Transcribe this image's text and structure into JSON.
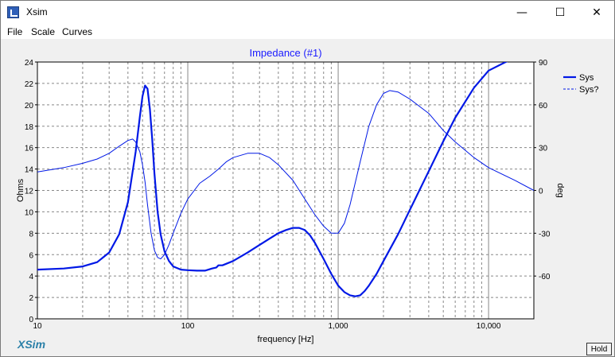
{
  "window": {
    "title": "Xsim",
    "minimize_glyph": "—",
    "maximize_glyph": "☐",
    "close_glyph": "✕"
  },
  "menu": {
    "items": [
      "File",
      "Scale",
      "Curves"
    ]
  },
  "footer": {
    "logo": "XSim",
    "hold_label": "Hold"
  },
  "chart_data": {
    "type": "line",
    "title": "Impedance (#1)",
    "xlabel": "frequency [Hz]",
    "ylabel": "Ohms",
    "y2label": "deg",
    "xscale": "log",
    "xlim": [
      10,
      20000
    ],
    "ylim": [
      0,
      24
    ],
    "y2lim": [
      -90,
      90
    ],
    "x_tick_labels": [
      "10",
      "100",
      "1,000",
      "10,000"
    ],
    "y_ticks": [
      0,
      2,
      4,
      6,
      8,
      10,
      12,
      14,
      16,
      18,
      20,
      22,
      24
    ],
    "y2_ticks": [
      -60,
      -30,
      0,
      30,
      60,
      90
    ],
    "grid": true,
    "legend_position": "right",
    "colors": {
      "series": "#0018e6",
      "title": "#1a1aff",
      "grid": "#888888"
    },
    "series": [
      {
        "name": "Sys",
        "axis": "left",
        "style": "solid-thick",
        "x": [
          10,
          15,
          20,
          25,
          30,
          35,
          40,
          45,
          48,
          50,
          52,
          54,
          56,
          58,
          60,
          63,
          66,
          70,
          75,
          80,
          90,
          100,
          115,
          130,
          145,
          155,
          160,
          170,
          200,
          250,
          300,
          350,
          400,
          450,
          500,
          550,
          600,
          650,
          700,
          800,
          900,
          1000,
          1100,
          1200,
          1300,
          1400,
          1500,
          1600,
          1800,
          2000,
          2500,
          3000,
          4000,
          5000,
          6000,
          8000,
          10000,
          13000,
          16000,
          20000
        ],
        "y": [
          4.6,
          4.7,
          4.9,
          5.3,
          6.2,
          7.9,
          10.9,
          15.6,
          18.9,
          20.8,
          21.8,
          21.5,
          19.6,
          16.8,
          13.6,
          10.0,
          7.9,
          6.3,
          5.4,
          4.9,
          4.6,
          4.55,
          4.5,
          4.5,
          4.7,
          4.8,
          5.0,
          5.0,
          5.4,
          6.2,
          6.9,
          7.5,
          8.0,
          8.3,
          8.5,
          8.5,
          8.3,
          7.8,
          7.1,
          5.6,
          4.2,
          3.1,
          2.5,
          2.2,
          2.1,
          2.2,
          2.6,
          3.1,
          4.2,
          5.4,
          7.9,
          10.2,
          13.8,
          16.6,
          18.8,
          21.6,
          23.2,
          24.0,
          24.5,
          25.0
        ]
      },
      {
        "name": "Sys?",
        "axis": "right",
        "style": "dashed-thin",
        "x": [
          10,
          15,
          20,
          25,
          30,
          35,
          40,
          43,
          45,
          48,
          50,
          52,
          54,
          57,
          60,
          63,
          66,
          70,
          75,
          80,
          90,
          100,
          120,
          140,
          160,
          180,
          200,
          250,
          300,
          350,
          400,
          500,
          600,
          700,
          800,
          900,
          1000,
          1100,
          1200,
          1400,
          1600,
          1800,
          2000,
          2200,
          2500,
          3000,
          4000,
          5000,
          6000,
          8000,
          10000,
          15000,
          20000
        ],
        "y": [
          13,
          16,
          19,
          22,
          26,
          31,
          35,
          36,
          34,
          27,
          18,
          6,
          -10,
          -30,
          -42,
          -47,
          -48,
          -45,
          -38,
          -30,
          -16,
          -6,
          5,
          10,
          15,
          20,
          23,
          26,
          26,
          23,
          18,
          7,
          -6,
          -17,
          -25,
          -30,
          -30,
          -23,
          -10,
          20,
          45,
          60,
          68,
          70,
          69,
          64,
          54,
          42,
          34,
          23,
          16,
          7,
          0
        ]
      }
    ]
  }
}
